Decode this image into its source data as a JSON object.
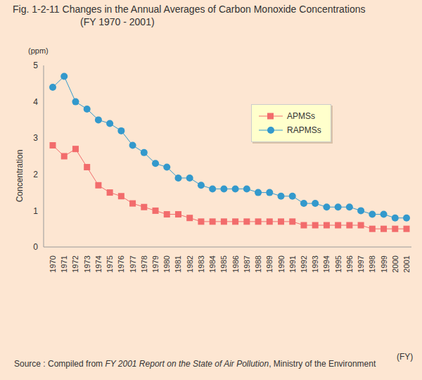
{
  "chart_data": {
    "type": "line",
    "title": "Fig. 1-2-11  Changes in the Annual Averages of Carbon Monoxide Concentrations",
    "subtitle": "(FY 1970 - 2001)",
    "y_label": "Concentration",
    "y_unit": "(ppm)",
    "x_label": "(FY)",
    "source": [
      "Source : Compiled from ",
      "FY 2001 Report on the State of Air Pollution",
      ", Ministry of the Environment"
    ],
    "categories": [
      "1970",
      "1971",
      "1972",
      "1973",
      "1974",
      "1975",
      "1976",
      "1977",
      "1978",
      "1979",
      "1980",
      "1981",
      "1982",
      "1983",
      "1984",
      "1985",
      "1986",
      "1987",
      "1988",
      "1989",
      "1990",
      "1991",
      "1992",
      "1993",
      "1994",
      "1995",
      "1996",
      "1997",
      "1998",
      "1999",
      "2000",
      "2001"
    ],
    "series": [
      {
        "name": "APMSs",
        "color": "#f26c6c",
        "marker": "square",
        "values": [
          2.8,
          2.5,
          2.7,
          2.2,
          1.7,
          1.5,
          1.4,
          1.2,
          1.1,
          1.0,
          0.9,
          0.9,
          0.8,
          0.7,
          0.7,
          0.7,
          0.7,
          0.7,
          0.7,
          0.7,
          0.7,
          0.7,
          0.6,
          0.6,
          0.6,
          0.6,
          0.6,
          0.6,
          0.5,
          0.5,
          0.5,
          0.5
        ]
      },
      {
        "name": "RAPMSs",
        "color": "#3399cc",
        "marker": "circle",
        "values": [
          4.4,
          4.7,
          4.0,
          3.8,
          3.5,
          3.4,
          3.2,
          2.8,
          2.6,
          2.3,
          2.2,
          1.9,
          1.9,
          1.7,
          1.6,
          1.6,
          1.6,
          1.6,
          1.5,
          1.5,
          1.4,
          1.4,
          1.2,
          1.2,
          1.1,
          1.1,
          1.1,
          1.0,
          0.9,
          0.9,
          0.8,
          0.8
        ]
      }
    ],
    "ylim": [
      0,
      5
    ],
    "yticks": [
      0,
      1,
      2,
      3,
      4,
      5
    ],
    "grid": false,
    "legend": "upper right"
  }
}
